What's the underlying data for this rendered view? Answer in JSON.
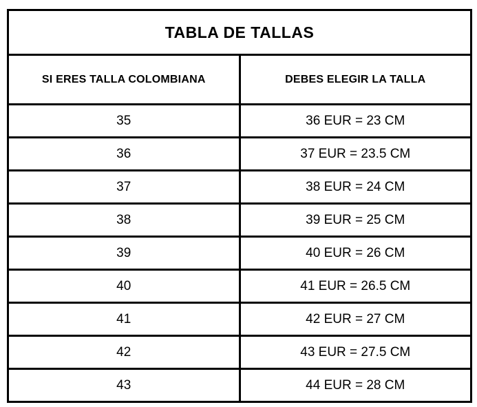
{
  "chart_data": {
    "type": "table",
    "title": "TABLA DE TALLAS",
    "columns": [
      "SI ERES TALLA COLOMBIANA",
      "DEBES ELEGIR LA TALLA"
    ],
    "rows": [
      [
        "35",
        "36 EUR = 23 CM"
      ],
      [
        "36",
        "37 EUR = 23.5 CM"
      ],
      [
        "37",
        "38 EUR = 24 CM"
      ],
      [
        "38",
        "39 EUR = 25 CM"
      ],
      [
        "39",
        "40 EUR = 26 CM"
      ],
      [
        "40",
        "41 EUR = 26.5 CM"
      ],
      [
        "41",
        "42 EUR = 27 CM"
      ],
      [
        "42",
        "43 EUR = 27.5 CM"
      ],
      [
        "43",
        "44 EUR = 28 CM"
      ]
    ]
  },
  "colors": {
    "border": "#000000",
    "text": "#000000",
    "background": "#ffffff"
  }
}
